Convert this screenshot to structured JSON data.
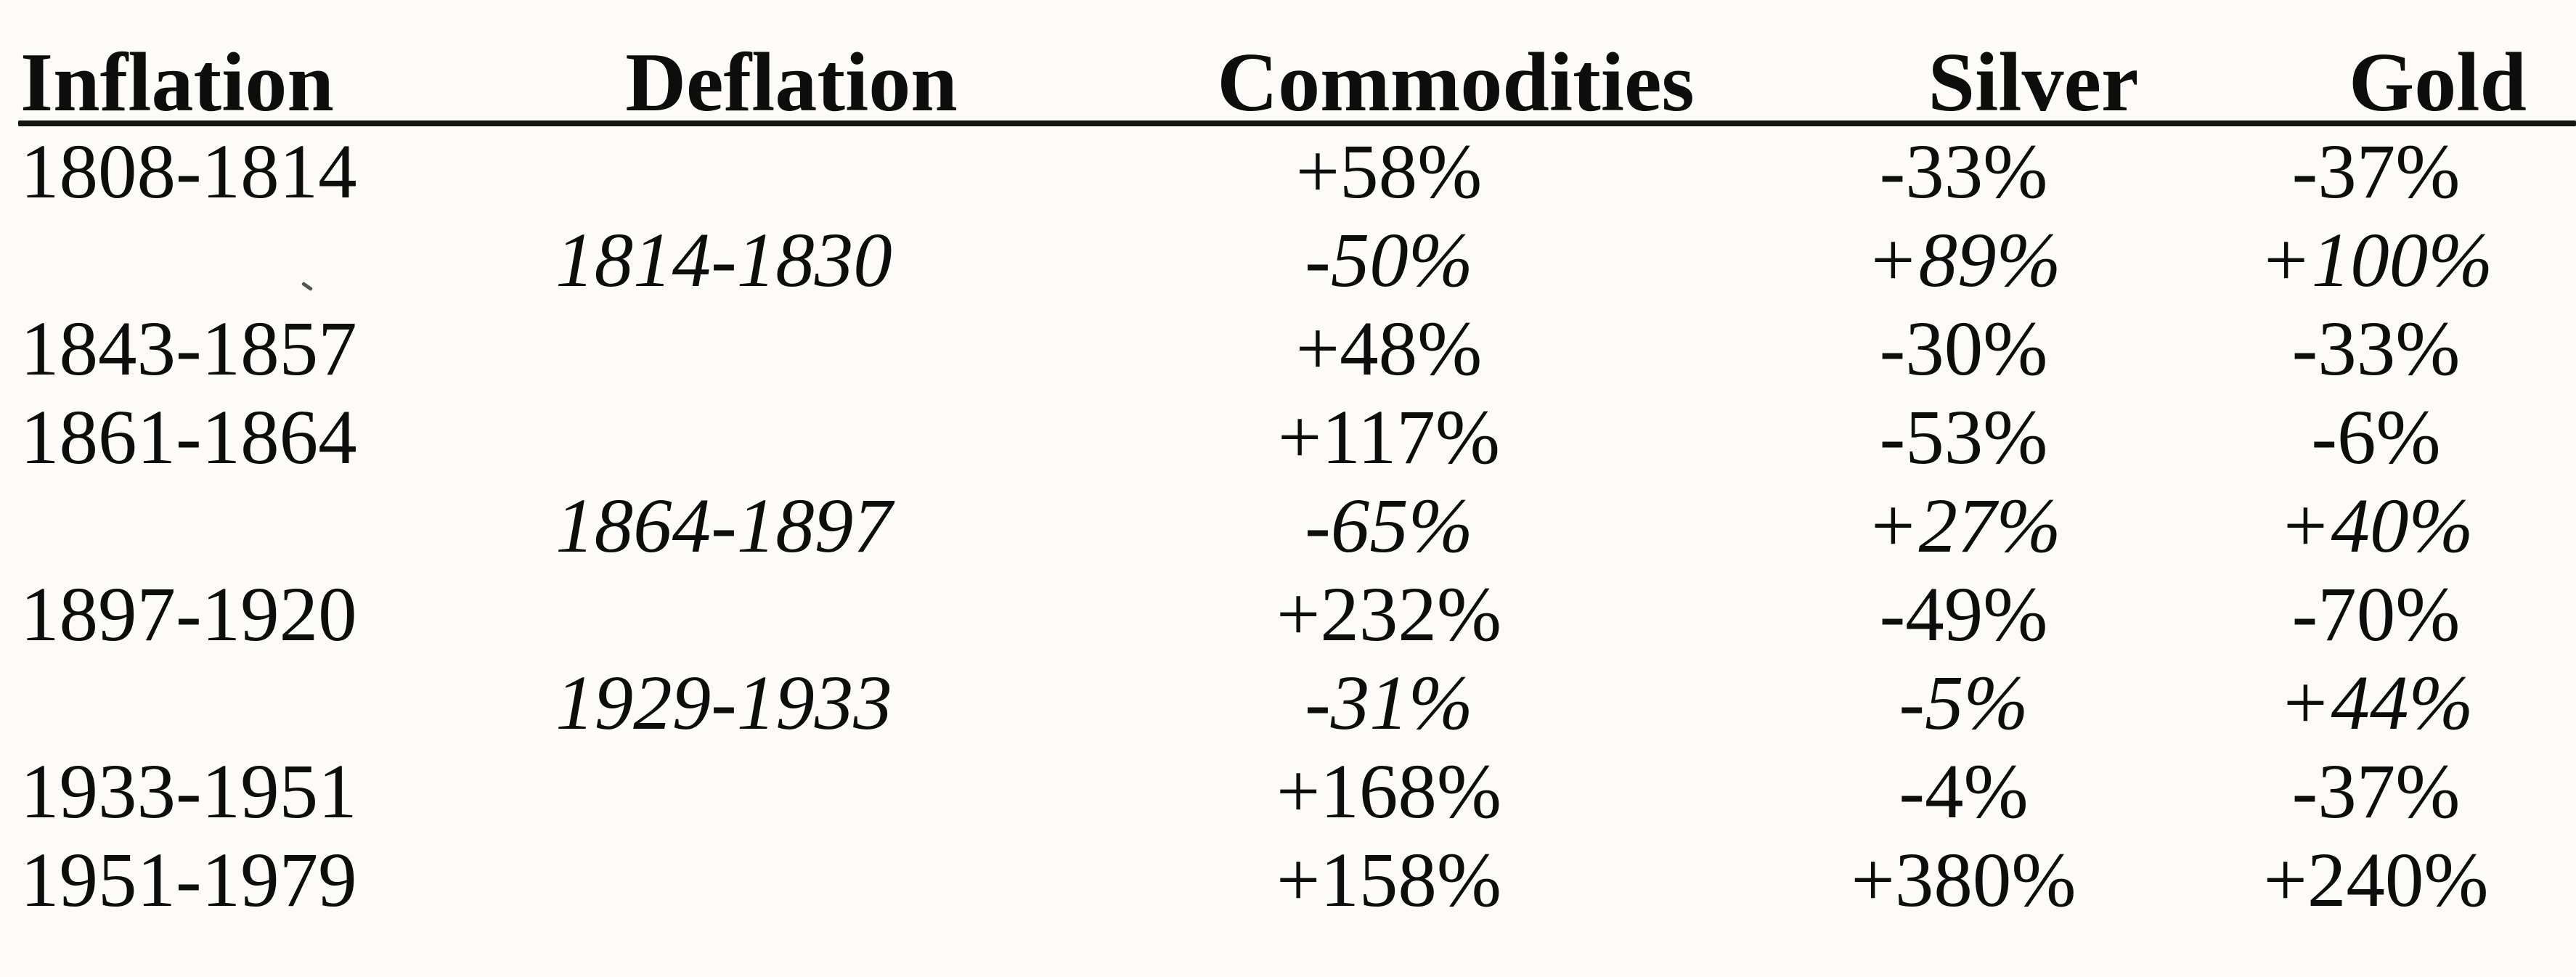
{
  "document": {
    "kind": "scanned-table",
    "background_color": "#fcfbf7",
    "ink_color": "#0d0d0d"
  },
  "table": {
    "headers": {
      "inflation": "Inflation",
      "deflation": "Deflation",
      "commodities": "Commodities",
      "silver": "Silver",
      "gold": "Gold"
    },
    "rows": [
      {
        "type": "inflation",
        "inflation": "1808-1814",
        "deflation": "",
        "commodities": "+58%",
        "silver": "-33%",
        "gold": "-37%"
      },
      {
        "type": "deflation",
        "inflation": "",
        "deflation": "1814-1830",
        "commodities": "-50%",
        "silver": "+89%",
        "gold": "+100%"
      },
      {
        "type": "inflation",
        "inflation": "1843-1857",
        "deflation": "",
        "commodities": "+48%",
        "silver": "-30%",
        "gold": "-33%"
      },
      {
        "type": "inflation",
        "inflation": "1861-1864",
        "deflation": "",
        "commodities": "+117%",
        "silver": "-53%",
        "gold": "-6%"
      },
      {
        "type": "deflation",
        "inflation": "",
        "deflation": "1864-1897",
        "commodities": "-65%",
        "silver": "+27%",
        "gold": "+40%"
      },
      {
        "type": "inflation",
        "inflation": "1897-1920",
        "deflation": "",
        "commodities": "+232%",
        "silver": "-49%",
        "gold": "-70%"
      },
      {
        "type": "deflation",
        "inflation": "",
        "deflation": "1929-1933",
        "commodities": "-31%",
        "silver": "-5%",
        "gold": "+44%"
      },
      {
        "type": "inflation",
        "inflation": "1933-1951",
        "deflation": "",
        "commodities": "+168%",
        "silver": "-4%",
        "gold": "-37%"
      },
      {
        "type": "inflation",
        "inflation": "1951-1979",
        "deflation": "",
        "commodities": "+158%",
        "silver": "+380%",
        "gold": "+240%"
      }
    ]
  }
}
